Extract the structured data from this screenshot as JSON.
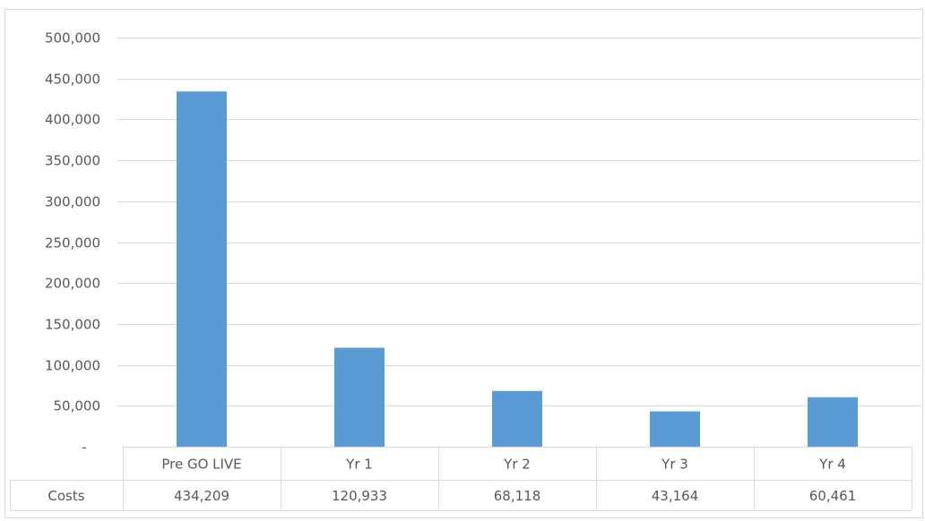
{
  "chart_data": {
    "type": "bar",
    "title": "",
    "xlabel": "",
    "ylabel": "",
    "categories": [
      "Pre GO LIVE",
      "Yr 1",
      "Yr 2",
      "Yr 3",
      "Yr 4"
    ],
    "series": [
      {
        "name": "Costs",
        "values": [
          434209,
          120933,
          68118,
          43164,
          60461
        ],
        "value_labels": [
          "434,209",
          "120,933",
          "68,118",
          "43,164",
          "60,461"
        ],
        "color": "#5b9bd5"
      }
    ],
    "ylim": [
      0,
      500000
    ],
    "yticks": [
      0,
      50000,
      100000,
      150000,
      200000,
      250000,
      300000,
      350000,
      400000,
      450000,
      500000
    ],
    "ytick_labels": [
      "-",
      "50,000",
      "100,000",
      "150,000",
      "200,000",
      "250,000",
      "300,000",
      "350,000",
      "400,000",
      "450,000",
      "500,000"
    ],
    "grid": true,
    "legend": "data-table",
    "data_table": true,
    "colors": {
      "grid": "#d9d9d9",
      "text": "#595959",
      "bar": "#5b9bd5"
    }
  }
}
